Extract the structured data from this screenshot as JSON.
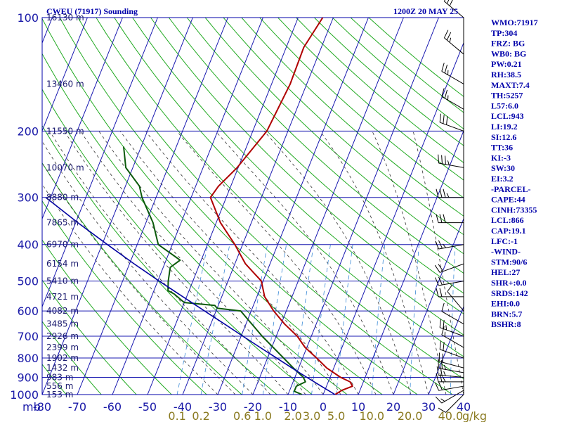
{
  "header": {
    "station": "CWEU (71917) Sounding",
    "time": "1200Z 20 MAY 25"
  },
  "indices": [
    "WMO:71917",
    "TP:304",
    "FRZ: BG",
    "WB0: BG",
    "PW:0.21",
    "RH:38.5",
    "MAXT:7.4",
    "TH:5257",
    "L57:6.0",
    "LCL:943",
    "LI:19.2",
    "SI:12.6",
    "TT:36",
    "KI:-3",
    "SW:30",
    "EI:3.2",
    "-PARCEL-",
    "CAPE:44",
    "CINH:73355",
    "LCL:866",
    "CAP:19.1",
    "LFC:-1",
    "-WIND-",
    "STM:90/6",
    "HEL:27",
    "SHR+:0.0",
    "SRDS:142",
    "EHI:0.0",
    "BRN:5.7",
    "BSHR:8"
  ],
  "colors": {
    "frame": "#0000aa",
    "isobar": "#1818b0",
    "isotherm": "#1818b0",
    "dry_adiabat": "#22aa22",
    "moist_adiabat": "#333333",
    "mixing_ratio": "#3a8ad6",
    "temperature": "#b00000",
    "dewpoint": "#0b5a0b",
    "parcel": "#0000a0",
    "wind": "#000000"
  },
  "chart_data": {
    "type": "line",
    "title": "CWEU (71917) Sounding",
    "xlabel": "",
    "ylabel": "",
    "x_unit_label": "mb",
    "xlim": [
      -80,
      40
    ],
    "ylim": [
      1000,
      100
    ],
    "y_scale": "log",
    "skew": true,
    "grid": true,
    "pressure_ticks": [
      "100",
      "200",
      "300",
      "400",
      "500",
      "600",
      "700",
      "800",
      "900",
      "1000"
    ],
    "temperature_ticks": [
      "-80",
      "-70",
      "-60",
      "-50",
      "-40",
      "-30",
      "-20",
      "-10",
      "0",
      "10",
      "20",
      "30",
      "40"
    ],
    "mixing_ratio_ticks": [
      "0.1",
      "0.2",
      "0.6",
      "1.0",
      "2.0",
      "3.0",
      "5.0",
      "10.0",
      "20.0",
      "40.0"
    ],
    "mixing_ratio_unit": "g/kg",
    "height_labels": [
      {
        "p": 100,
        "label": "16130 m"
      },
      {
        "p": 150,
        "label": "13460 m"
      },
      {
        "p": 200,
        "label": "11550 m"
      },
      {
        "p": 250,
        "label": "10070 m"
      },
      {
        "p": 300,
        "label": "8880 m"
      },
      {
        "p": 350,
        "label": "7865 m"
      },
      {
        "p": 400,
        "label": "6970 m"
      },
      {
        "p": 450,
        "label": "6154 m"
      },
      {
        "p": 500,
        "label": "5410 m"
      },
      {
        "p": 550,
        "label": "4721 m"
      },
      {
        "p": 600,
        "label": "4082 m"
      },
      {
        "p": 650,
        "label": "3485 m"
      },
      {
        "p": 700,
        "label": "2926 m"
      },
      {
        "p": 750,
        "label": "2399 m"
      },
      {
        "p": 800,
        "label": "1902 m"
      },
      {
        "p": 850,
        "label": "1432 m"
      },
      {
        "p": 900,
        "label": "983 m"
      },
      {
        "p": 950,
        "label": "556 m"
      },
      {
        "p": 1000,
        "label": "153 m"
      }
    ],
    "series": [
      {
        "key": "temperature",
        "points": [
          [
            1000,
            3.4
          ],
          [
            975,
            4.8
          ],
          [
            950,
            7.4
          ],
          [
            925,
            6.2
          ],
          [
            900,
            3.0
          ],
          [
            850,
            -2.0
          ],
          [
            800,
            -6.0
          ],
          [
            750,
            -10.5
          ],
          [
            700,
            -14.0
          ],
          [
            650,
            -19.0
          ],
          [
            600,
            -23.6
          ],
          [
            550,
            -27.8
          ],
          [
            500,
            -30.5
          ],
          [
            450,
            -37.0
          ],
          [
            400,
            -42.2
          ],
          [
            350,
            -48.8
          ],
          [
            300,
            -54.5
          ],
          [
            280,
            -53.5
          ],
          [
            250,
            -50.3
          ],
          [
            200,
            -46.0
          ],
          [
            150,
            -44.7
          ],
          [
            120,
            -45.0
          ],
          [
            100,
            -43.0
          ]
        ]
      },
      {
        "key": "dewpoint",
        "points": [
          [
            1000,
            -6.0
          ],
          [
            980,
            -8.6
          ],
          [
            950,
            -8.6
          ],
          [
            925,
            -6.5
          ],
          [
            900,
            -7.6
          ],
          [
            850,
            -11.5
          ],
          [
            700,
            -24.0
          ],
          [
            600,
            -33.0
          ],
          [
            590,
            -40.0
          ],
          [
            580,
            -41.0
          ],
          [
            570,
            -50.0
          ],
          [
            540,
            -54.0
          ],
          [
            530,
            -56.0
          ],
          [
            500,
            -57.0
          ],
          [
            460,
            -58.0
          ],
          [
            440,
            -56.0
          ],
          [
            400,
            -64.0
          ],
          [
            350,
            -68.0
          ],
          [
            300,
            -74.0
          ],
          [
            280,
            -76.0
          ],
          [
            250,
            -82.0
          ],
          [
            220,
            -85.0
          ]
        ]
      },
      {
        "key": "parcel",
        "points": [
          [
            1000,
            3.4
          ],
          [
            950,
            -1.5
          ],
          [
            900,
            -6.6
          ],
          [
            850,
            -11.9
          ],
          [
            800,
            -17.4
          ],
          [
            750,
            -23.3
          ],
          [
            700,
            -29.5
          ],
          [
            650,
            -36.1
          ],
          [
            600,
            -43.3
          ],
          [
            550,
            -51.1
          ],
          [
            500,
            -59.6
          ],
          [
            450,
            -68.7
          ],
          [
            400,
            -78.5
          ],
          [
            350,
            -89.4
          ],
          [
            300,
            -101.4
          ]
        ]
      }
    ],
    "wind_barbs": [
      {
        "p": 1000,
        "dir": 225,
        "spd": 10
      },
      {
        "p": 975,
        "dir": 240,
        "spd": 15
      },
      {
        "p": 950,
        "dir": 260,
        "spd": 20
      },
      {
        "p": 925,
        "dir": 270,
        "spd": 25
      },
      {
        "p": 900,
        "dir": 275,
        "spd": 25
      },
      {
        "p": 875,
        "dir": 280,
        "spd": 25
      },
      {
        "p": 850,
        "dir": 285,
        "spd": 20
      },
      {
        "p": 800,
        "dir": 290,
        "spd": 20
      },
      {
        "p": 750,
        "dir": 300,
        "spd": 15
      },
      {
        "p": 700,
        "dir": 290,
        "spd": 25
      },
      {
        "p": 650,
        "dir": 300,
        "spd": 10
      },
      {
        "p": 600,
        "dir": 320,
        "spd": 10
      },
      {
        "p": 550,
        "dir": 270,
        "spd": 20
      },
      {
        "p": 500,
        "dir": 260,
        "spd": 20
      },
      {
        "p": 450,
        "dir": 250,
        "spd": 20
      },
      {
        "p": 400,
        "dir": 260,
        "spd": 25
      },
      {
        "p": 350,
        "dir": 270,
        "spd": 30
      },
      {
        "p": 300,
        "dir": 270,
        "spd": 35
      },
      {
        "p": 250,
        "dir": 280,
        "spd": 35
      },
      {
        "p": 200,
        "dir": 290,
        "spd": 30
      },
      {
        "p": 175,
        "dir": 300,
        "spd": 25
      },
      {
        "p": 150,
        "dir": 300,
        "spd": 25
      },
      {
        "p": 125,
        "dir": 310,
        "spd": 25
      },
      {
        "p": 100,
        "dir": 310,
        "spd": 30
      }
    ]
  }
}
